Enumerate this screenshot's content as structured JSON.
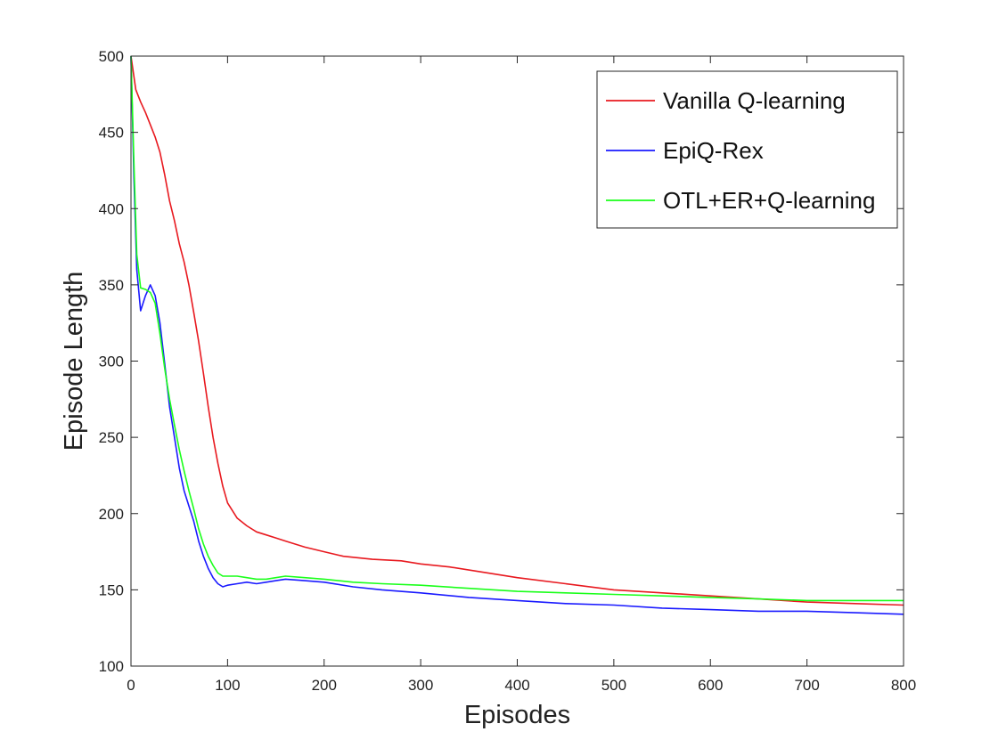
{
  "chart_data": {
    "type": "line",
    "title": "",
    "xlabel": "Episodes",
    "ylabel": "Episode Length",
    "xlim": [
      0,
      800
    ],
    "ylim": [
      100,
      500
    ],
    "x_ticks": [
      0,
      100,
      200,
      300,
      400,
      500,
      600,
      700,
      800
    ],
    "y_ticks": [
      100,
      150,
      200,
      250,
      300,
      350,
      400,
      450,
      500
    ],
    "grid": false,
    "legend_position": "top-right",
    "series": [
      {
        "name": "Vanilla Q-learning",
        "color": "#e8191f",
        "x": [
          0,
          5,
          10,
          15,
          20,
          25,
          30,
          35,
          40,
          45,
          50,
          55,
          60,
          65,
          70,
          75,
          80,
          85,
          90,
          95,
          100,
          110,
          120,
          130,
          140,
          150,
          160,
          180,
          200,
          220,
          250,
          280,
          300,
          330,
          360,
          400,
          450,
          500,
          550,
          600,
          650,
          700,
          750,
          800
        ],
        "y": [
          500,
          478,
          470,
          463,
          455,
          447,
          437,
          422,
          405,
          392,
          377,
          365,
          350,
          332,
          313,
          292,
          270,
          250,
          233,
          218,
          207,
          197,
          192,
          188,
          186,
          184,
          182,
          178,
          175,
          172,
          170,
          169,
          167,
          165,
          162,
          158,
          154,
          150,
          148,
          146,
          144,
          142,
          141,
          140
        ]
      },
      {
        "name": "EpiQ-Rex",
        "color": "#1a1aff",
        "x": [
          0,
          3,
          6,
          10,
          15,
          20,
          25,
          30,
          35,
          40,
          45,
          50,
          55,
          60,
          65,
          70,
          75,
          80,
          85,
          90,
          95,
          100,
          110,
          120,
          130,
          140,
          150,
          160,
          180,
          200,
          230,
          260,
          300,
          350,
          400,
          450,
          500,
          550,
          600,
          650,
          700,
          750,
          800
        ],
        "y": [
          500,
          420,
          360,
          333,
          343,
          350,
          343,
          325,
          298,
          270,
          250,
          230,
          215,
          205,
          195,
          182,
          172,
          164,
          158,
          154,
          152,
          153,
          154,
          155,
          154,
          155,
          156,
          157,
          156,
          155,
          152,
          150,
          148,
          145,
          143,
          141,
          140,
          138,
          137,
          136,
          136,
          135,
          134
        ]
      },
      {
        "name": "OTL+ER+Q-learning",
        "color": "#1aff1a",
        "x": [
          0,
          3,
          6,
          10,
          15,
          20,
          25,
          30,
          35,
          40,
          45,
          50,
          55,
          60,
          65,
          70,
          75,
          80,
          85,
          90,
          95,
          100,
          110,
          120,
          130,
          140,
          150,
          160,
          180,
          200,
          230,
          260,
          300,
          350,
          400,
          450,
          500,
          550,
          600,
          650,
          700,
          750,
          800
        ],
        "y": [
          500,
          430,
          370,
          348,
          347,
          345,
          338,
          318,
          295,
          275,
          258,
          242,
          228,
          215,
          203,
          190,
          180,
          172,
          166,
          161,
          159,
          159,
          159,
          158,
          157,
          157,
          158,
          159,
          158,
          157,
          155,
          154,
          153,
          151,
          149,
          148,
          147,
          146,
          145,
          144,
          143,
          143,
          143
        ]
      }
    ]
  }
}
